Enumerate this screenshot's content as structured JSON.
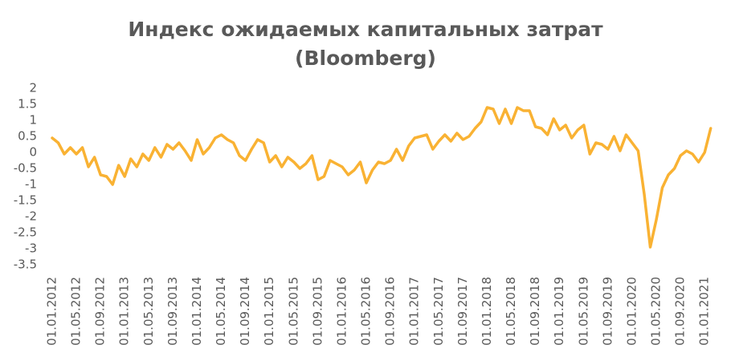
{
  "chart_data": {
    "type": "line",
    "title": "Индекс ожидаемых капитальных затрат",
    "subtitle": "(Bloomberg)",
    "categories": [
      "01.01.2012",
      null,
      null,
      null,
      "01.05.2012",
      null,
      null,
      null,
      "01.09.2012",
      null,
      null,
      null,
      "01.01.2013",
      null,
      null,
      null,
      "01.05.2013",
      null,
      null,
      null,
      "01.09.2013",
      null,
      null,
      null,
      "01.01.2014",
      null,
      null,
      null,
      "01.05.2014",
      null,
      null,
      null,
      "01.09.2014",
      null,
      null,
      null,
      "01.01.2015",
      null,
      null,
      null,
      "01.05.2015",
      null,
      null,
      null,
      "01.09.2015",
      null,
      null,
      null,
      "01.01.2016",
      null,
      null,
      null,
      "01.05.2016",
      null,
      null,
      null,
      "01.09.2016",
      null,
      null,
      null,
      "01.01.2017",
      null,
      null,
      null,
      "01.05.2017",
      null,
      null,
      null,
      "01.09.2017",
      null,
      null,
      null,
      "01.01.2018",
      null,
      null,
      null,
      "01.05.2018",
      null,
      null,
      null,
      "01.09.2018",
      null,
      null,
      null,
      "01.01.2019",
      null,
      null,
      null,
      "01.05.2019",
      null,
      null,
      null,
      "01.09.2019",
      null,
      null,
      null,
      "01.01.2020",
      null,
      null,
      null,
      "01.05.2020",
      null,
      null,
      null,
      "01.09.2020",
      null,
      null,
      null,
      "01.01.2021",
      null
    ],
    "series": [
      {
        "color": "#f9b233",
        "values": [
          0.45,
          0.3,
          -0.05,
          0.15,
          -0.05,
          0.15,
          -0.45,
          -0.15,
          -0.7,
          -0.75,
          -1.0,
          -0.4,
          -0.75,
          -0.2,
          -0.45,
          -0.05,
          -0.25,
          0.15,
          -0.15,
          0.25,
          0.1,
          0.3,
          0.05,
          -0.25,
          0.4,
          -0.05,
          0.15,
          0.45,
          0.55,
          0.4,
          0.3,
          -0.1,
          -0.25,
          0.1,
          0.4,
          0.3,
          -0.3,
          -0.1,
          -0.45,
          -0.15,
          -0.3,
          -0.5,
          -0.35,
          -0.1,
          -0.85,
          -0.75,
          -0.25,
          -0.35,
          -0.45,
          -0.7,
          -0.55,
          -0.3,
          -0.95,
          -0.55,
          -0.3,
          -0.35,
          -0.25,
          0.1,
          -0.25,
          0.2,
          0.45,
          0.5,
          0.55,
          0.1,
          0.35,
          0.55,
          0.35,
          0.6,
          0.4,
          0.5,
          0.75,
          0.95,
          1.4,
          1.35,
          0.9,
          1.35,
          0.9,
          1.4,
          1.3,
          1.3,
          0.8,
          0.75,
          0.55,
          1.05,
          0.7,
          0.85,
          0.45,
          0.7,
          0.85,
          -0.05,
          0.3,
          0.25,
          0.1,
          0.5,
          0.05,
          0.55,
          0.3,
          0.05,
          -1.3,
          -2.95,
          -2.1,
          -1.1,
          -0.7,
          -0.5,
          -0.1,
          0.05,
          -0.05,
          -0.3,
          0.0,
          0.75
        ]
      }
    ],
    "ylim": [
      -3.5,
      2
    ],
    "yticks": [
      -3.5,
      -3,
      -2.5,
      -2,
      -1.5,
      -1,
      -0.5,
      0,
      0.5,
      1,
      1.5,
      2
    ],
    "grid": false
  }
}
